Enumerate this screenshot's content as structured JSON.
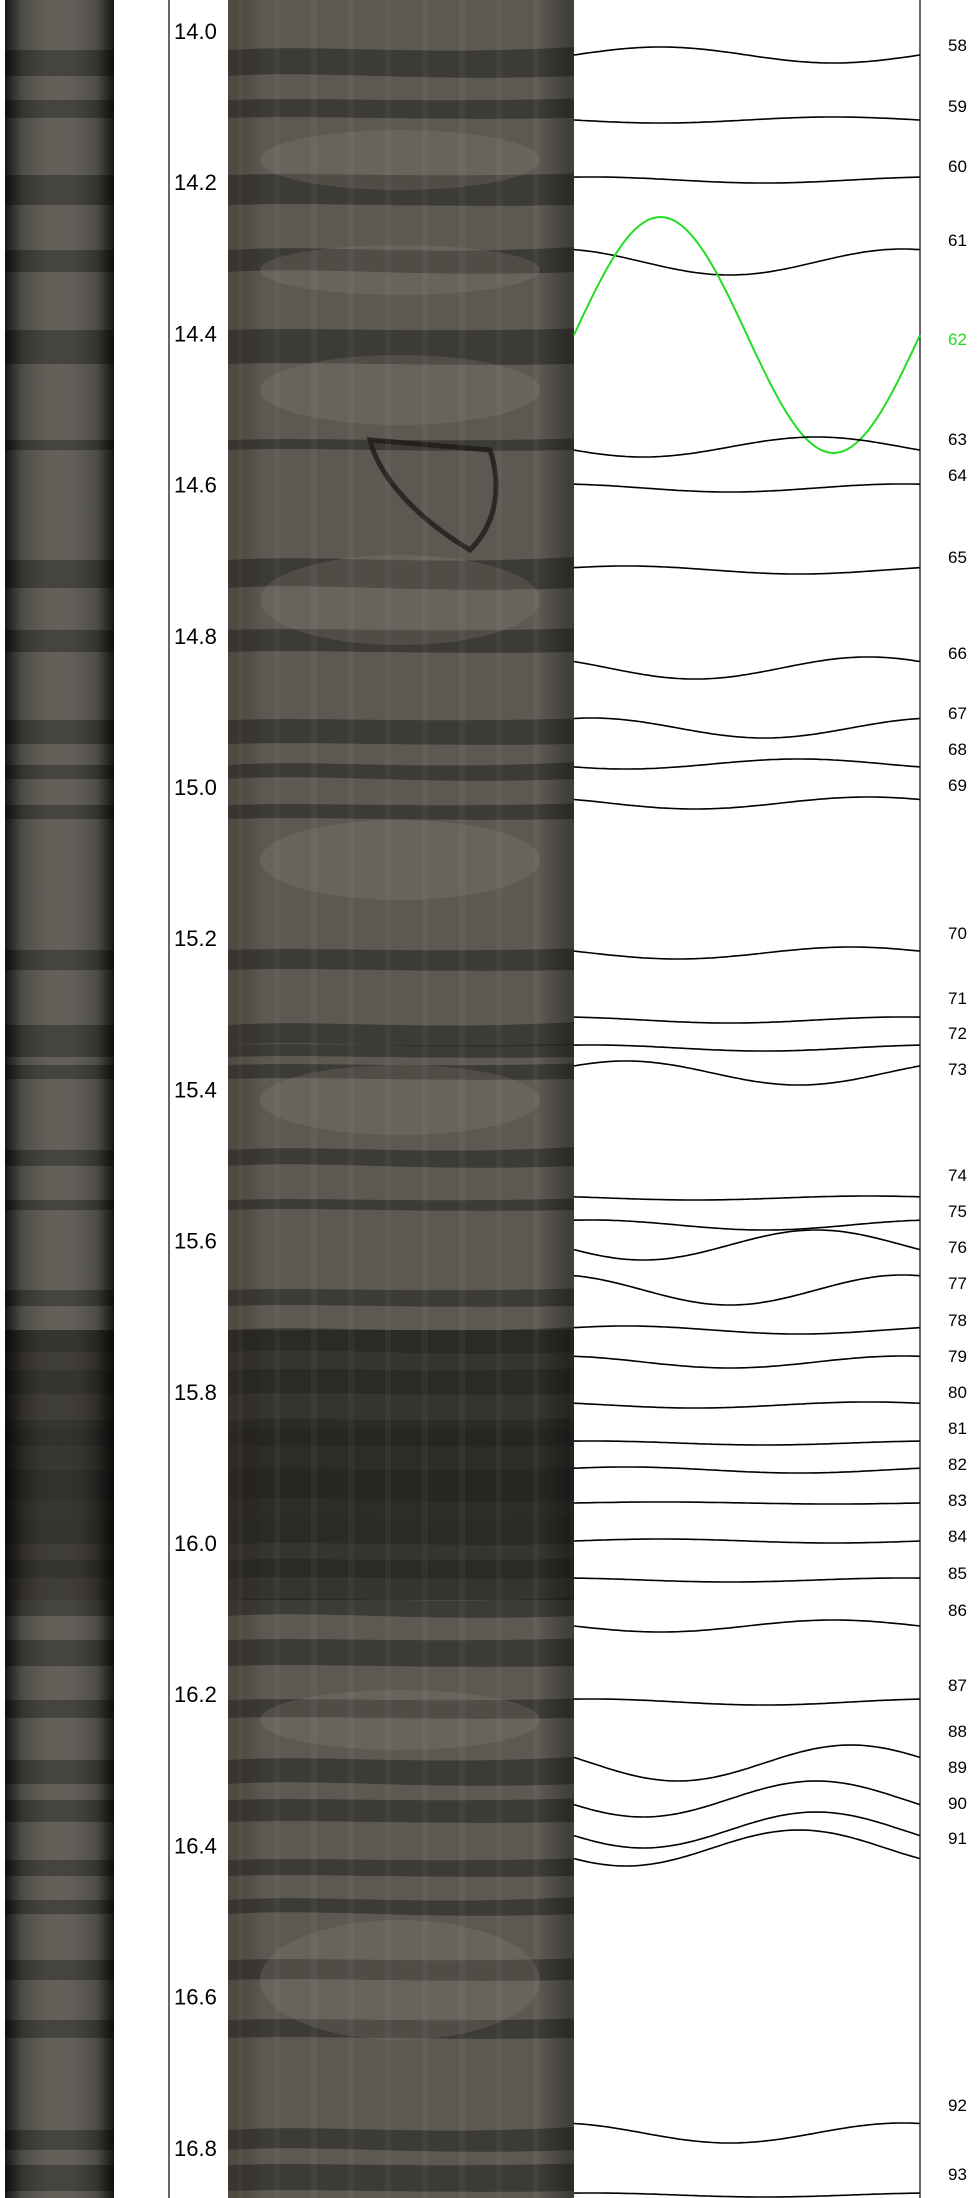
{
  "depth_axis": {
    "labels": [
      "14.0",
      "14.2",
      "14.4",
      "14.6",
      "14.8",
      "15.0",
      "15.2",
      "15.4",
      "15.6",
      "15.8",
      "16.0",
      "16.2",
      "16.4",
      "16.6",
      "16.8"
    ]
  },
  "traces": {
    "labels": [
      "58",
      "59",
      "60",
      "61",
      "62",
      "63",
      "64",
      "65",
      "66",
      "67",
      "68",
      "69",
      "70",
      "71",
      "72",
      "73",
      "74",
      "75",
      "76",
      "77",
      "78",
      "79",
      "80",
      "81",
      "82",
      "83",
      "84",
      "85",
      "86",
      "87",
      "88",
      "89",
      "90",
      "91",
      "92",
      "93"
    ],
    "highlighted": "62",
    "highlight_color": "#22dd22",
    "line_color": "#000000"
  },
  "colors": {
    "background": "#ffffff",
    "core_dark": "#2a2824",
    "core_mid": "#55524c",
    "core_light": "#7a766e"
  }
}
